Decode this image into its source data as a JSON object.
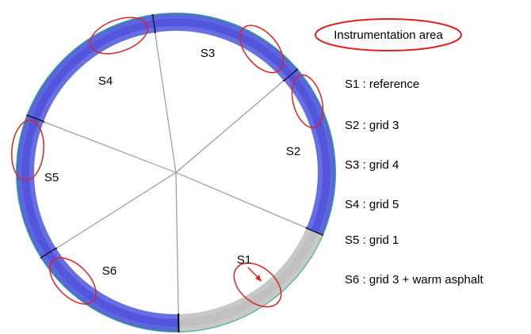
{
  "callout": "Instrumentation area",
  "sections": [
    {
      "label": "S1"
    },
    {
      "label": "S2"
    },
    {
      "label": "S3"
    },
    {
      "label": "S4"
    },
    {
      "label": "S5"
    },
    {
      "label": "S6"
    }
  ],
  "legend": [
    "S1 : reference",
    "S2 : grid 3",
    "S3 : grid 4",
    "S4 : grid 5",
    "S5 : grid 1",
    "S6 : grid 3 + warm asphalt"
  ]
}
